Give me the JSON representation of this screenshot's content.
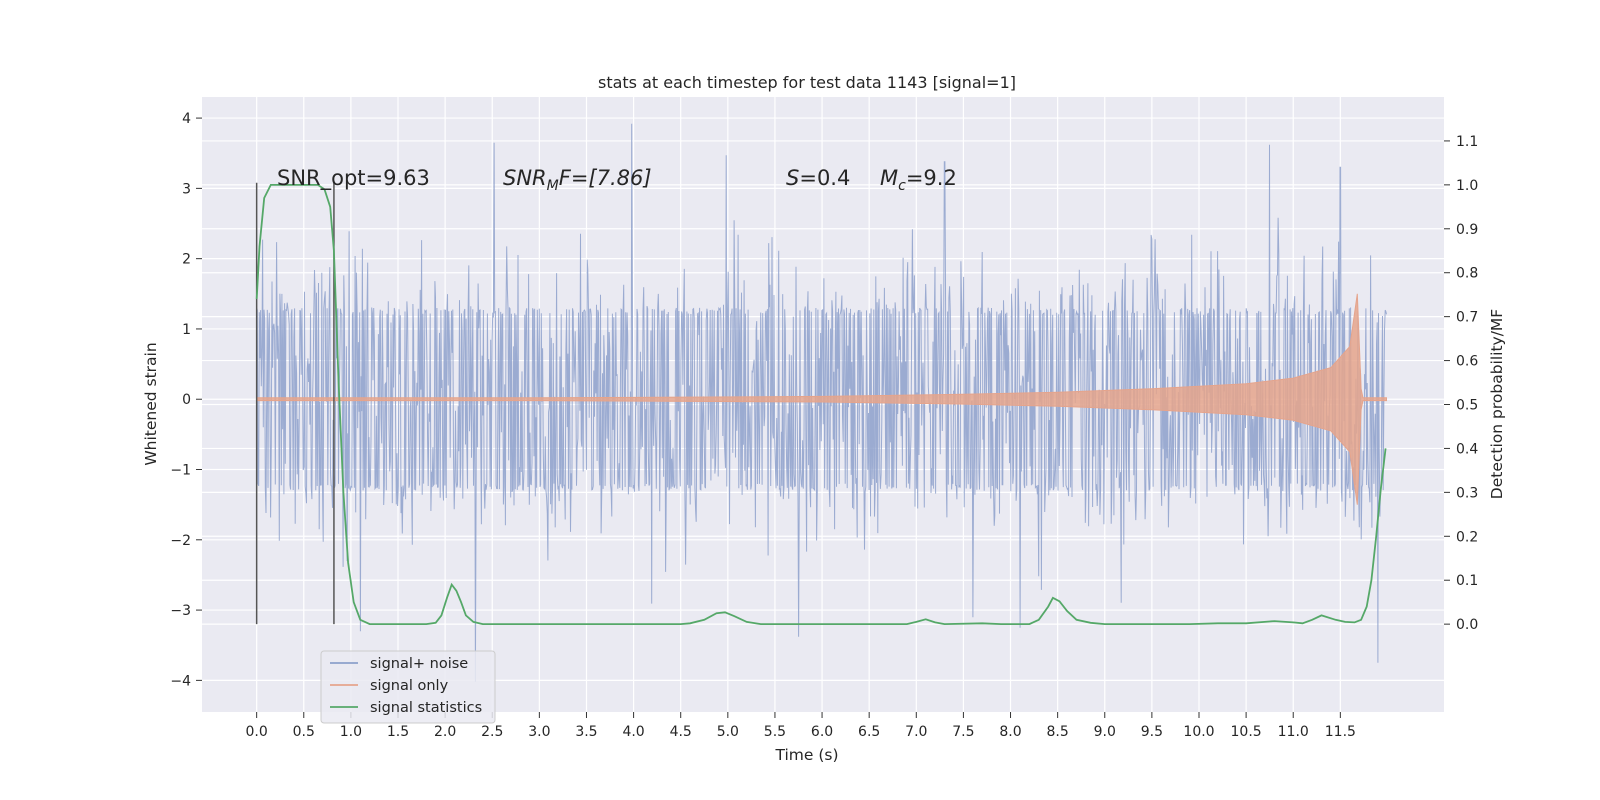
{
  "chart_data": {
    "type": "line",
    "title": "stats at each timestep for test data 1143 [signal=1]",
    "xlabel": "Time (s)",
    "ylabel_left": "Whitened strain",
    "ylabel_right": "Detection probability/MF",
    "xlim": [
      -0.58,
      12.6
    ],
    "ylim_left": [
      -4.45,
      4.3
    ],
    "ylim_right": [
      -0.2,
      1.2
    ],
    "x_ticks": [
      "0.0",
      "0.5",
      "1.0",
      "1.5",
      "2.0",
      "2.5",
      "3.0",
      "3.5",
      "4.0",
      "4.5",
      "5.0",
      "5.5",
      "6.0",
      "6.5",
      "7.0",
      "7.5",
      "8.0",
      "8.5",
      "9.0",
      "9.5",
      "10.0",
      "10.5",
      "11.0",
      "11.5"
    ],
    "y_ticks_left": [
      "−4",
      "−3",
      "−2",
      "−1",
      "0",
      "1",
      "2",
      "3",
      "4"
    ],
    "y_ticks_right": [
      "0.0",
      "0.1",
      "0.2",
      "0.3",
      "0.4",
      "0.5",
      "0.6",
      "0.7",
      "0.8",
      "0.9",
      "1.0",
      "1.1"
    ],
    "grid": true,
    "legend_position": "lower-left",
    "annotations": {
      "snr_opt": "SNR_opt=9.63",
      "snr_mf_prefix": "SNR",
      "snr_mf_sub": "M",
      "snr_mf_suffix": "F=[7.86]",
      "spin_symbol": "S",
      "spin_value": "=0.4",
      "mc_symbol": "M",
      "mc_sub": "c",
      "mc_value": "=9.2"
    },
    "vertical_markers": [
      {
        "x": 0.0,
        "y_range": [
          -3.2,
          3.08
        ]
      },
      {
        "x": 0.82,
        "y_range": [
          -3.2,
          3.08
        ]
      }
    ],
    "series": [
      {
        "name": "signal+ noise",
        "color": "#8da0cb",
        "x_range": [
          0.0,
          11.99
        ],
        "typical_band": [
          -1.2,
          1.2
        ],
        "extremes": [
          {
            "x": 3.98,
            "y": 3.92
          },
          {
            "x": 2.52,
            "y": 3.65
          },
          {
            "x": 4.98,
            "y": 3.47
          },
          {
            "x": 7.3,
            "y": 3.38
          },
          {
            "x": 10.75,
            "y": 3.62
          },
          {
            "x": 11.5,
            "y": 3.3
          },
          {
            "x": 2.32,
            "y": -4.02
          },
          {
            "x": 11.9,
            "y": -3.75
          },
          {
            "x": 5.75,
            "y": -3.38
          },
          {
            "x": 1.1,
            "y": -3.3
          },
          {
            "x": 8.1,
            "y": -3.25
          }
        ]
      },
      {
        "name": "signal only",
        "color": "#e5a48c",
        "envelope": [
          {
            "x": 0.0,
            "y": 0.02
          },
          {
            "x": 3.0,
            "y": 0.02
          },
          {
            "x": 6.0,
            "y": 0.04
          },
          {
            "x": 7.5,
            "y": 0.07
          },
          {
            "x": 8.5,
            "y": 0.1
          },
          {
            "x": 9.5,
            "y": 0.15
          },
          {
            "x": 10.5,
            "y": 0.22
          },
          {
            "x": 11.0,
            "y": 0.3
          },
          {
            "x": 11.4,
            "y": 0.45
          },
          {
            "x": 11.6,
            "y": 0.75
          },
          {
            "x": 11.68,
            "y": 1.5
          },
          {
            "x": 11.72,
            "y": 0.15
          },
          {
            "x": 11.74,
            "y": 0.02
          },
          {
            "x": 11.99,
            "y": 0.02
          }
        ]
      },
      {
        "name": "signal statistics",
        "color": "#55a868",
        "points": [
          [
            0.0,
            0.74
          ],
          [
            0.03,
            0.86
          ],
          [
            0.08,
            0.97
          ],
          [
            0.15,
            1.0
          ],
          [
            0.3,
            1.0
          ],
          [
            0.5,
            1.0
          ],
          [
            0.65,
            1.0
          ],
          [
            0.72,
            0.99
          ],
          [
            0.78,
            0.95
          ],
          [
            0.82,
            0.85
          ],
          [
            0.87,
            0.55
          ],
          [
            0.92,
            0.3
          ],
          [
            0.97,
            0.14
          ],
          [
            1.03,
            0.05
          ],
          [
            1.1,
            0.01
          ],
          [
            1.2,
            0.0
          ],
          [
            1.8,
            0.0
          ],
          [
            1.9,
            0.003
          ],
          [
            1.96,
            0.02
          ],
          [
            2.02,
            0.06
          ],
          [
            2.07,
            0.09
          ],
          [
            2.12,
            0.076
          ],
          [
            2.17,
            0.05
          ],
          [
            2.22,
            0.02
          ],
          [
            2.3,
            0.005
          ],
          [
            2.4,
            0.0
          ],
          [
            4.5,
            0.0
          ],
          [
            4.6,
            0.002
          ],
          [
            4.75,
            0.01
          ],
          [
            4.88,
            0.025
          ],
          [
            4.97,
            0.027
          ],
          [
            5.07,
            0.018
          ],
          [
            5.2,
            0.005
          ],
          [
            5.35,
            0.0
          ],
          [
            6.9,
            0.0
          ],
          [
            7.0,
            0.005
          ],
          [
            7.1,
            0.011
          ],
          [
            7.2,
            0.004
          ],
          [
            7.3,
            0.0
          ],
          [
            7.7,
            0.002
          ],
          [
            7.9,
            0.0
          ],
          [
            8.2,
            0.0
          ],
          [
            8.3,
            0.01
          ],
          [
            8.4,
            0.04
          ],
          [
            8.45,
            0.06
          ],
          [
            8.52,
            0.052
          ],
          [
            8.6,
            0.03
          ],
          [
            8.7,
            0.01
          ],
          [
            8.85,
            0.003
          ],
          [
            9.0,
            0.0
          ],
          [
            9.9,
            0.0
          ],
          [
            10.2,
            0.002
          ],
          [
            10.5,
            0.002
          ],
          [
            10.8,
            0.007
          ],
          [
            11.0,
            0.004
          ],
          [
            11.1,
            0.002
          ],
          [
            11.2,
            0.01
          ],
          [
            11.3,
            0.02
          ],
          [
            11.45,
            0.01
          ],
          [
            11.55,
            0.005
          ],
          [
            11.65,
            0.004
          ],
          [
            11.72,
            0.01
          ],
          [
            11.78,
            0.04
          ],
          [
            11.83,
            0.1
          ],
          [
            11.88,
            0.2
          ],
          [
            11.93,
            0.31
          ],
          [
            11.98,
            0.4
          ]
        ]
      }
    ]
  }
}
